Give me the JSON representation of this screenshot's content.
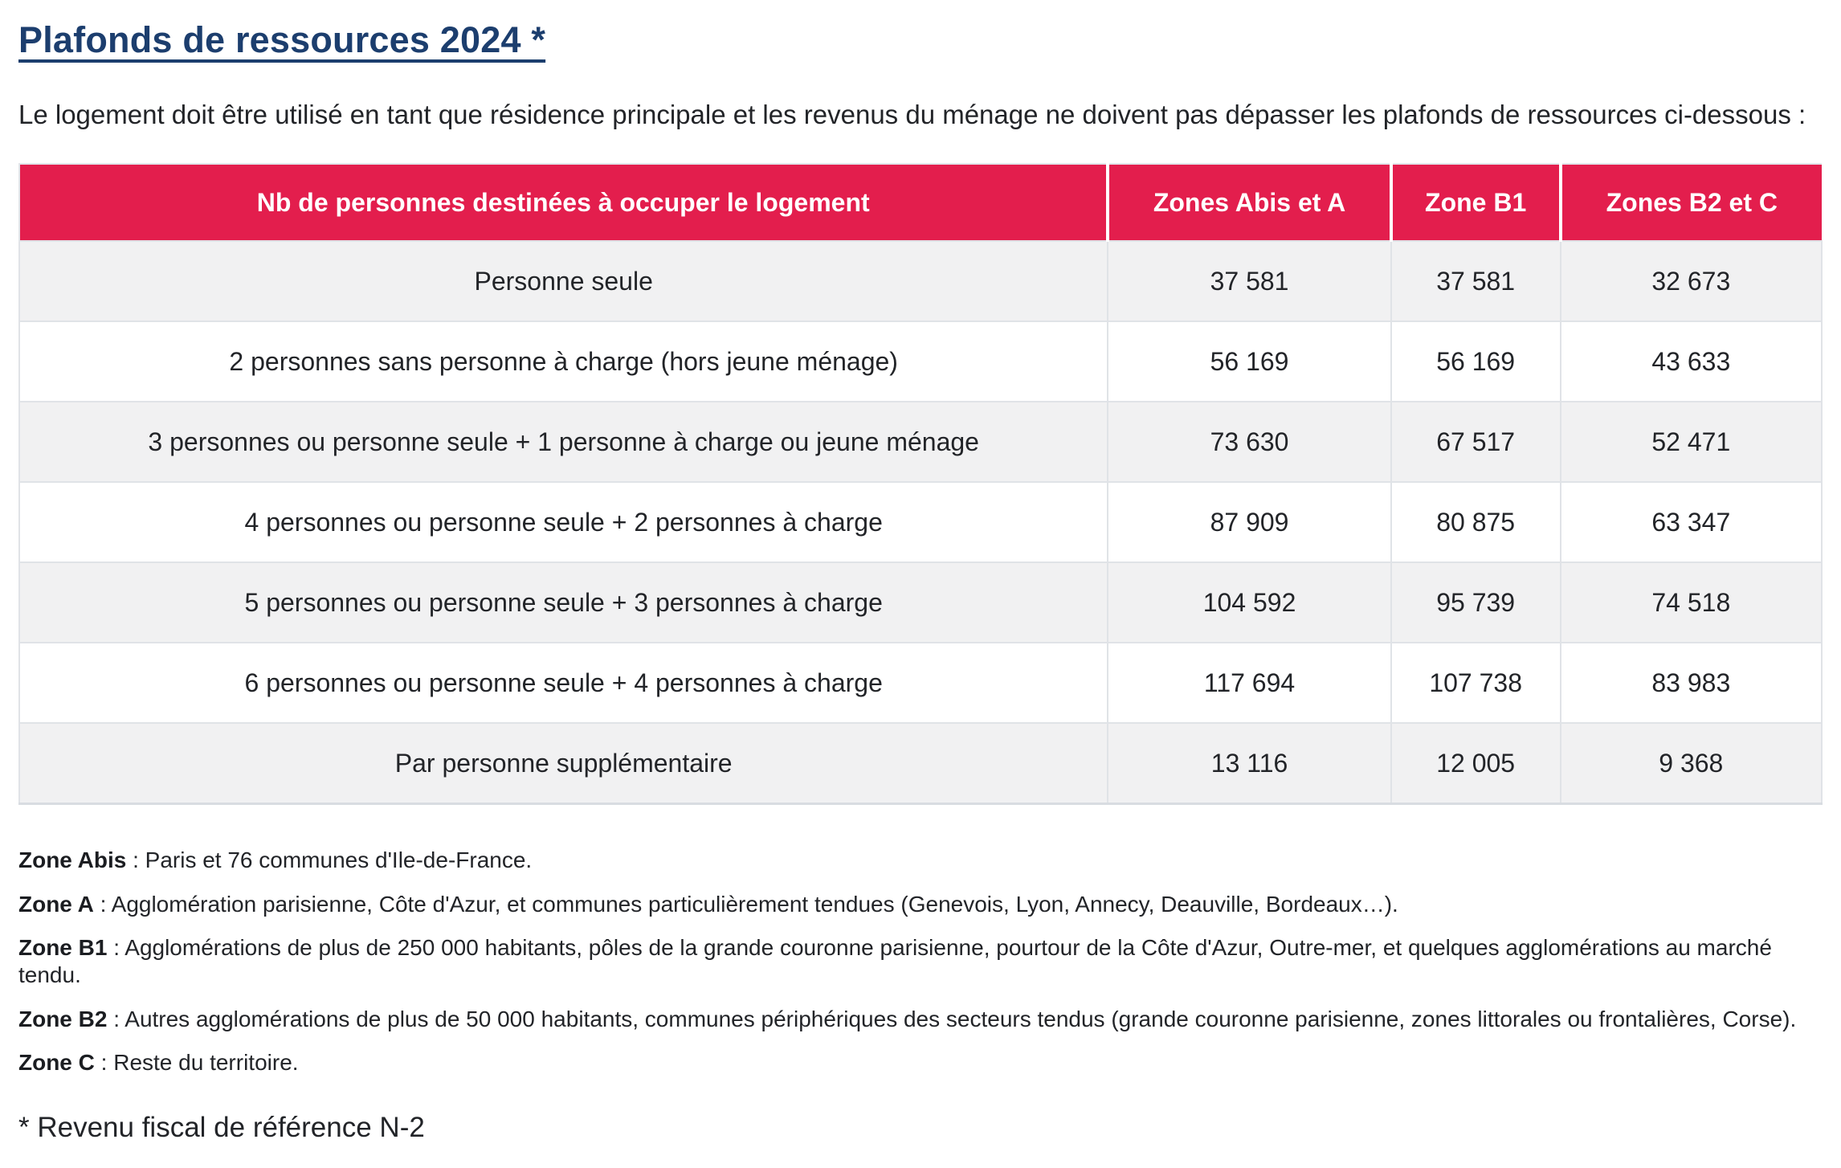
{
  "page": {
    "title": "Plafonds de ressources 2024 *",
    "intro": "Le logement doit être utilisé en tant que résidence principale et les revenus du ménage ne doivent pas dépasser les plafonds de ressources ci-dessous :",
    "footnote": "* Revenu fiscal de référence N-2"
  },
  "colors": {
    "header_bg": "#e31e4d",
    "title_blue": "#1c3e6e",
    "stripe_bg": "#f1f1f2",
    "border": "#e0e3e7"
  },
  "table": {
    "headers": [
      "Nb de personnes destinées à occuper le logement",
      "Zones Abis et A",
      "Zone B1",
      "Zones B2 et C"
    ],
    "rows": [
      {
        "label": "Personne seule",
        "values": [
          "37 581",
          "37 581",
          "32 673"
        ]
      },
      {
        "label": "2 personnes sans personne à charge (hors jeune ménage)",
        "values": [
          "56 169",
          "56 169",
          "43 633"
        ]
      },
      {
        "label": "3 personnes ou personne seule + 1 personne à charge ou jeune ménage",
        "values": [
          "73 630",
          "67 517",
          "52 471"
        ]
      },
      {
        "label": "4 personnes ou personne seule + 2 personnes à charge",
        "values": [
          "87 909",
          "80 875",
          "63 347"
        ]
      },
      {
        "label": "5 personnes ou personne seule + 3 personnes à charge",
        "values": [
          "104 592",
          "95 739",
          "74 518"
        ]
      },
      {
        "label": "6 personnes ou personne seule + 4 personnes à charge",
        "values": [
          "117 694",
          "107 738",
          "83 983"
        ]
      },
      {
        "label": "Par personne supplémentaire",
        "values": [
          "13 116",
          "12 005",
          "9 368"
        ]
      }
    ]
  },
  "zone_notes": [
    {
      "term": "Zone Abis",
      "definition": " : Paris et 76 communes d'Ile-de-France."
    },
    {
      "term": "Zone A",
      "definition": " : Agglomération parisienne, Côte d'Azur, et communes particulièrement tendues (Genevois, Lyon, Annecy, Deauville, Bordeaux…)."
    },
    {
      "term": "Zone B1",
      "definition": " : Agglomérations de plus de 250 000 habitants, pôles de la grande couronne parisienne, pourtour de la Côte d'Azur, Outre-mer, et quelques agglomérations au marché tendu."
    },
    {
      "term": "Zone B2",
      "definition": " : Autres agglomérations de plus de 50 000 habitants, communes périphériques des secteurs tendus (grande couronne parisienne, zones littorales ou frontalières, Corse)."
    },
    {
      "term": "Zone C",
      "definition": " : Reste du territoire."
    }
  ]
}
